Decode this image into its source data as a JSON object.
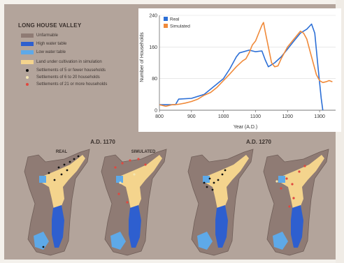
{
  "panel": {
    "title": "LONG HOUSE VALLEY",
    "legend": [
      {
        "label": "Unfarmable",
        "color": "#8f7b74",
        "kind": "swatch"
      },
      {
        "label": "High water table",
        "color": "#2e5fcf",
        "kind": "swatch"
      },
      {
        "label": "Low water table",
        "color": "#5ea9e8",
        "kind": "swatch"
      },
      {
        "label": "Land under cultivation in simulation",
        "color": "#f4d48d",
        "kind": "swatch"
      },
      {
        "label": "Settlements of 5 or fewer households",
        "color": "#111111",
        "kind": "dot"
      },
      {
        "label": "Settlements of 6 to 20 households",
        "color": "#f3e6b2",
        "kind": "dot"
      },
      {
        "label": "Settlements of 21 or more households",
        "color": "#e0483f",
        "kind": "dot"
      }
    ]
  },
  "maps": {
    "year_left": "A.D. 1170",
    "year_right": "A.D. 1270",
    "label_real": "REAL",
    "label_simulated": "SIMULATED"
  },
  "chart_data": {
    "type": "line",
    "xlabel": "Year (A.D.)",
    "ylabel": "Number of Households",
    "xlim": [
      800,
      1350
    ],
    "ylim": [
      0,
      240
    ],
    "xticks": [
      800,
      900,
      1000,
      1100,
      1200,
      1300
    ],
    "yticks": [
      0,
      80,
      160,
      240
    ],
    "legend_position": "top-left",
    "series": [
      {
        "name": "Real",
        "color": "#2c6fd6",
        "points": [
          [
            800,
            14
          ],
          [
            850,
            14
          ],
          [
            860,
            28
          ],
          [
            900,
            30
          ],
          [
            940,
            40
          ],
          [
            1000,
            80
          ],
          [
            1020,
            105
          ],
          [
            1040,
            135
          ],
          [
            1050,
            145
          ],
          [
            1080,
            152
          ],
          [
            1100,
            148
          ],
          [
            1120,
            150
          ],
          [
            1130,
            128
          ],
          [
            1140,
            110
          ],
          [
            1160,
            120
          ],
          [
            1180,
            135
          ],
          [
            1200,
            155
          ],
          [
            1220,
            175
          ],
          [
            1240,
            195
          ],
          [
            1260,
            205
          ],
          [
            1275,
            218
          ],
          [
            1285,
            195
          ],
          [
            1295,
            110
          ],
          [
            1305,
            30
          ],
          [
            1310,
            0
          ]
        ]
      },
      {
        "name": "Simulated",
        "color": "#f08a3a",
        "points": [
          [
            800,
            14
          ],
          [
            820,
            10
          ],
          [
            840,
            14
          ],
          [
            860,
            15
          ],
          [
            880,
            18
          ],
          [
            900,
            22
          ],
          [
            920,
            28
          ],
          [
            940,
            38
          ],
          [
            960,
            45
          ],
          [
            980,
            58
          ],
          [
            1000,
            75
          ],
          [
            1020,
            92
          ],
          [
            1040,
            110
          ],
          [
            1060,
            125
          ],
          [
            1070,
            130
          ],
          [
            1080,
            145
          ],
          [
            1090,
            165
          ],
          [
            1100,
            175
          ],
          [
            1110,
            195
          ],
          [
            1120,
            215
          ],
          [
            1125,
            222
          ],
          [
            1130,
            200
          ],
          [
            1140,
            160
          ],
          [
            1150,
            120
          ],
          [
            1160,
            110
          ],
          [
            1170,
            112
          ],
          [
            1180,
            130
          ],
          [
            1190,
            145
          ],
          [
            1200,
            160
          ],
          [
            1220,
            180
          ],
          [
            1240,
            200
          ],
          [
            1250,
            195
          ],
          [
            1260,
            180
          ],
          [
            1270,
            150
          ],
          [
            1280,
            120
          ],
          [
            1290,
            90
          ],
          [
            1300,
            75
          ],
          [
            1310,
            70
          ],
          [
            1320,
            72
          ],
          [
            1330,
            75
          ],
          [
            1340,
            72
          ]
        ]
      }
    ]
  }
}
